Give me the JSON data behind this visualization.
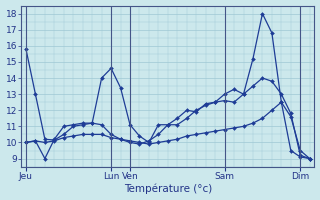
{
  "title": "Température (°c)",
  "bg_color": "#cce8ec",
  "grid_color": "#9fc8d4",
  "line_color": "#1e3c96",
  "ylim": [
    8.5,
    18.5
  ],
  "yticks": [
    9,
    10,
    11,
    12,
    13,
    14,
    15,
    16,
    17,
    18
  ],
  "day_labels": [
    "Jeu",
    "Lun",
    "Ven",
    "Sam",
    "Dim"
  ],
  "day_x": [
    0,
    9,
    11,
    21,
    29
  ],
  "num_points": 31,
  "series1": [
    15.8,
    13.0,
    10.2,
    10.15,
    10.5,
    11.0,
    11.1,
    11.2,
    14.0,
    14.6,
    13.4,
    11.1,
    10.4,
    10.0,
    11.1,
    11.1,
    11.5,
    12.0,
    11.9,
    12.4,
    12.5,
    13.0,
    13.3,
    13.0,
    15.2,
    18.0,
    16.8,
    12.5,
    11.6,
    9.5,
    9.0
  ],
  "series2": [
    10.0,
    10.1,
    9.0,
    10.2,
    11.0,
    11.1,
    11.2,
    11.2,
    11.1,
    10.5,
    10.2,
    10.0,
    9.9,
    10.1,
    10.5,
    11.1,
    11.1,
    11.5,
    12.0,
    12.3,
    12.5,
    12.6,
    12.5,
    13.0,
    13.5,
    14.0,
    13.8,
    13.0,
    11.8,
    9.2,
    9.0
  ],
  "series3": [
    10.0,
    10.1,
    10.0,
    10.1,
    10.3,
    10.4,
    10.5,
    10.5,
    10.5,
    10.3,
    10.2,
    10.1,
    10.0,
    9.9,
    10.0,
    10.1,
    10.2,
    10.4,
    10.5,
    10.6,
    10.7,
    10.8,
    10.9,
    11.0,
    11.2,
    11.5,
    12.0,
    12.5,
    9.5,
    9.1,
    9.0
  ]
}
